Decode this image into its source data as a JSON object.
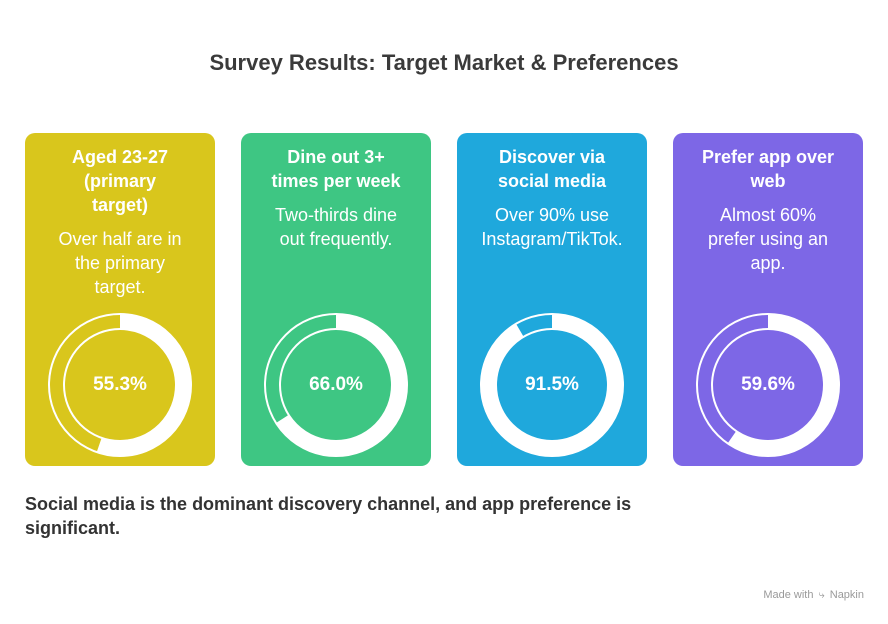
{
  "title": "Survey Results: Target Market & Preferences",
  "cards": [
    {
      "heading": "Aged 23-27 (primary target)",
      "heading_lines": [
        "Aged 23-27",
        "(primary",
        "target)"
      ],
      "desc_lines": [
        "Over half are in",
        "the primary",
        "target."
      ],
      "value_label": "55.3%",
      "color": "#d9c61c"
    },
    {
      "heading": "Dine out 3+ times per week",
      "heading_lines": [
        "Dine out 3+",
        "times per week"
      ],
      "desc_lines": [
        "Two-thirds dine",
        "out frequently."
      ],
      "value_label": "66.0%",
      "color": "#3ec683"
    },
    {
      "heading": "Discover via social media",
      "heading_lines": [
        "Discover via",
        "social media"
      ],
      "desc_lines": [
        "Over 90% use",
        "Instagram/TikTok."
      ],
      "value_label": "91.5%",
      "color": "#1fa8dc"
    },
    {
      "heading": "Prefer app over web",
      "heading_lines": [
        "Prefer app over",
        "web"
      ],
      "desc_lines": [
        "Almost 60%",
        "prefer using an",
        "app."
      ],
      "value_label": "59.6%",
      "color": "#7d67e6"
    }
  ],
  "chart_data": {
    "type": "donut",
    "categories": [
      "Aged 23-27 (primary target)",
      "Dine out 3+ times per week",
      "Discover via social media",
      "Prefer app over web"
    ],
    "values": [
      55.3,
      66.0,
      91.5,
      59.6
    ],
    "unit": "%",
    "title": "Survey Results: Target Market & Preferences"
  },
  "footer": "Social media is the dominant discovery channel, and app preference is significant.",
  "credit": {
    "prefix": "Made with",
    "brand": "Napkin"
  }
}
